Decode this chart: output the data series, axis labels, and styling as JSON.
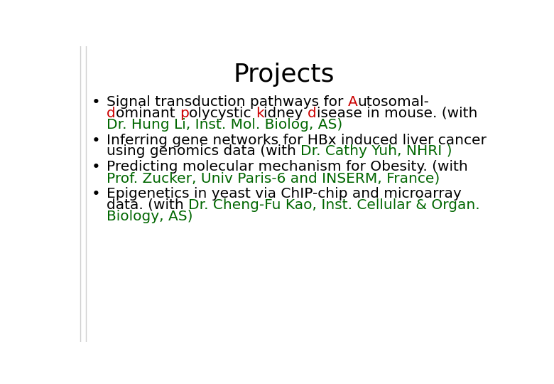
{
  "title": "Projects",
  "title_fontsize": 26,
  "title_fontweight": "normal",
  "background_color": "#ffffff",
  "body_fontsize": 14.5,
  "black": "#000000",
  "red": "#cc0000",
  "green": "#006600",
  "bullet_char": "•",
  "vline_color": "#d0d0d0",
  "bullets": [
    {
      "lines": [
        [
          {
            "text": "Signal transduction pathways for ",
            "color": "#000000"
          },
          {
            "text": "A",
            "color": "#cc0000"
          },
          {
            "text": "utosomal-",
            "color": "#000000"
          }
        ],
        [
          {
            "text": "d",
            "color": "#cc0000"
          },
          {
            "text": "ominant ",
            "color": "#000000"
          },
          {
            "text": "p",
            "color": "#cc0000"
          },
          {
            "text": "olycystic ",
            "color": "#000000"
          },
          {
            "text": "k",
            "color": "#cc0000"
          },
          {
            "text": "idney ",
            "color": "#000000"
          },
          {
            "text": "d",
            "color": "#cc0000"
          },
          {
            "text": "isease in mouse. (with",
            "color": "#000000"
          }
        ],
        [
          {
            "text": "Dr. Hung Li, Inst. Mol. Biolog, AS)",
            "color": "#006600"
          }
        ]
      ]
    },
    {
      "lines": [
        [
          {
            "text": "Inferring gene networks for HBx induced liver cancer",
            "color": "#000000"
          }
        ],
        [
          {
            "text": "using genomics data (with ",
            "color": "#000000"
          },
          {
            "text": "Dr. Cathy Yuh, NHRI )",
            "color": "#006600"
          }
        ]
      ]
    },
    {
      "lines": [
        [
          {
            "text": "Predicting molecular mechanism for Obesity. (with",
            "color": "#000000"
          }
        ],
        [
          {
            "text": "Prof. Zucker, Univ Paris-6 and INSERM, France)",
            "color": "#006600"
          }
        ]
      ]
    },
    {
      "lines": [
        [
          {
            "text": "Epigenetics in yeast via ChIP-chip and microarray",
            "color": "#000000"
          }
        ],
        [
          {
            "text": "data. (with ",
            "color": "#000000"
          },
          {
            "text": "Dr. Cheng-Fu Kao, Inst. Cellular & Organ.",
            "color": "#006600"
          }
        ],
        [
          {
            "text": "Biology, AS)",
            "color": "#006600"
          }
        ]
      ]
    }
  ]
}
